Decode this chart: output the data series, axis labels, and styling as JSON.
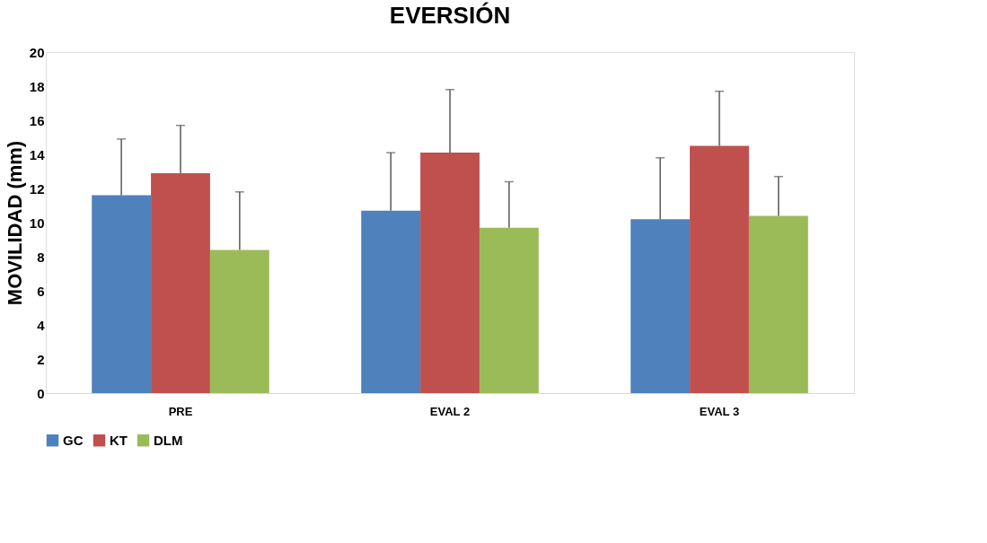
{
  "chart_data": {
    "type": "bar",
    "title": "EVERSIÓN",
    "ylabel": "MOVILIDAD (mm)",
    "categories": [
      "PRE",
      "EVAL 2",
      "EVAL 3"
    ],
    "series": [
      {
        "name": "GC",
        "color": "#4f81bd",
        "values": [
          11.6,
          10.7,
          10.2
        ],
        "errors": [
          [
            11.6,
            14.9
          ],
          [
            10.7,
            14.1
          ],
          [
            10.2,
            13.8
          ]
        ]
      },
      {
        "name": "KT",
        "color": "#c0504d",
        "values": [
          12.9,
          14.1,
          14.5
        ],
        "errors": [
          [
            12.9,
            15.7
          ],
          [
            14.1,
            17.8
          ],
          [
            14.5,
            17.7
          ]
        ]
      },
      {
        "name": "DLM",
        "color": "#9bbb59",
        "values": [
          8.4,
          9.7,
          10.4
        ],
        "errors": [
          [
            8.4,
            11.8
          ],
          [
            9.7,
            12.4
          ],
          [
            10.4,
            12.7
          ]
        ]
      }
    ],
    "ylim": [
      0,
      20
    ],
    "yticks": [
      0,
      2,
      4,
      6,
      8,
      10,
      12,
      14,
      16,
      18,
      20
    ],
    "legend": "bottom",
    "grid": false
  }
}
